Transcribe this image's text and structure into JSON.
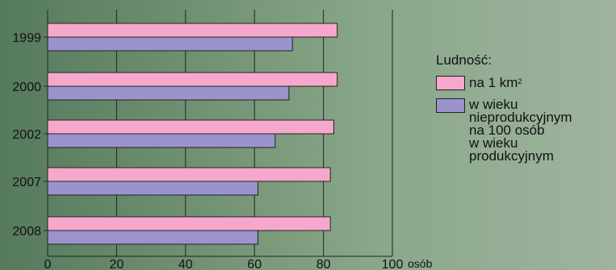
{
  "chart_data": {
    "type": "bar",
    "orientation": "horizontal",
    "categories": [
      "1999",
      "2000",
      "2002",
      "2007",
      "2008"
    ],
    "series": [
      {
        "name": "na 1 km²",
        "values": [
          84,
          84,
          83,
          82,
          82
        ],
        "color": "#f6a8cc"
      },
      {
        "name": "w wieku nieprodukcyjnym na 100 osób w wieku produkcyjnym",
        "values": [
          71,
          70,
          66,
          61,
          61
        ],
        "color": "#9a93cc"
      }
    ],
    "xlim": [
      0,
      100
    ],
    "xticks": [
      "0",
      "20",
      "40",
      "60",
      "80",
      "100"
    ],
    "xunit": "osób",
    "grid": true
  },
  "legend": {
    "title": "Ludność:",
    "item1_main": "na 1 km",
    "item1_sup": "2",
    "item2_lines": [
      "w wieku",
      "nieprodukcyjnym",
      "na 100 osób",
      "w wieku",
      "produkcyjnym"
    ]
  }
}
